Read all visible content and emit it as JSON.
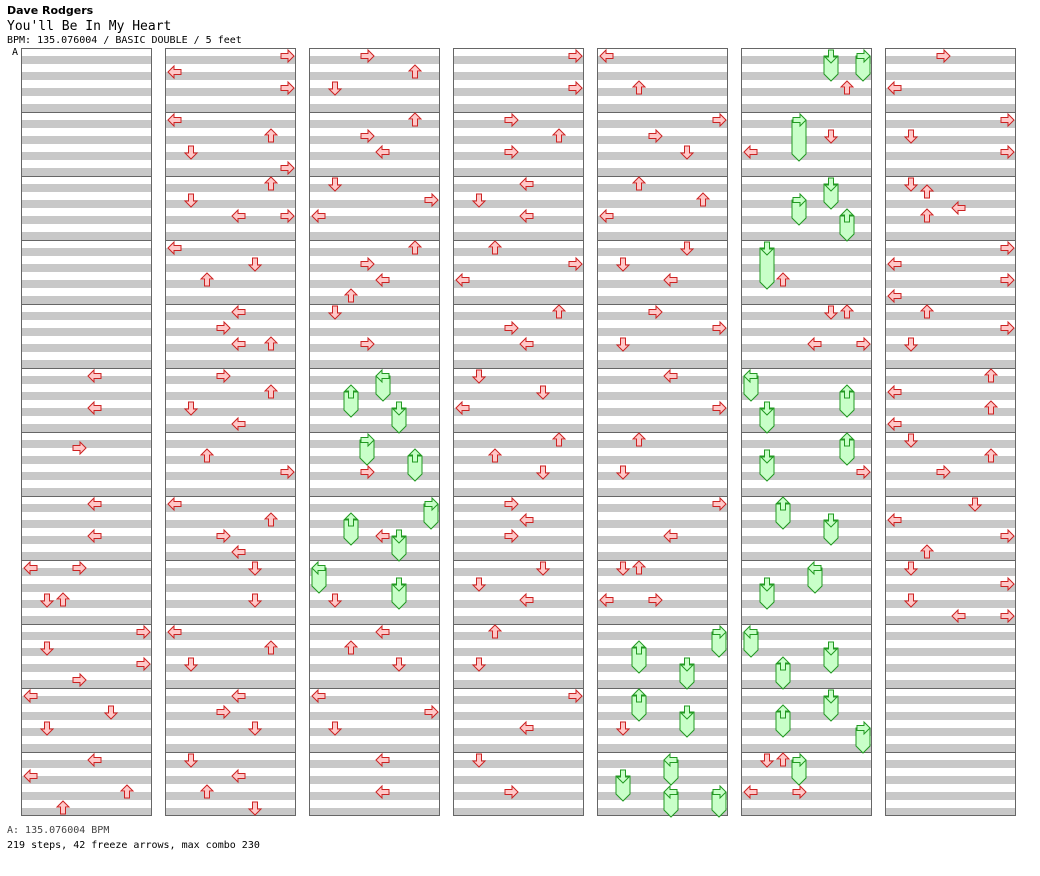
{
  "artist": "Dave Rodgers",
  "title": "You'll Be In My Heart",
  "info": "BPM: 135.076004 / BASIC DOUBLE / 5 feet",
  "marker": "A",
  "footer_bpm": "A: 135.076004 BPM",
  "footer_stats": "219 steps, 42 freeze arrows, max combo 230",
  "colors": {
    "stripe": "#c8c8c8",
    "arrow_fill": "#ffc8c8",
    "arrow_stroke": "#cc2222",
    "freeze_fill": "#c8ffc8",
    "freeze_stroke": "#229922"
  },
  "chart_data": {
    "type": "step-chart",
    "columns": 7,
    "measures_per_column": 12,
    "lanes": 8,
    "rows_per_measure": 8,
    "arrows": [
      [
        0,
        5,
        0,
        "L"
      ],
      [
        0,
        5,
        2,
        "L"
      ],
      [
        0,
        6,
        0.5,
        "R"
      ],
      [
        0,
        7,
        0,
        "L"
      ],
      [
        0,
        7,
        2,
        "L"
      ],
      [
        0,
        8,
        0,
        "L"
      ],
      [
        0,
        8,
        0,
        "R"
      ],
      [
        0,
        8,
        2,
        "D"
      ],
      [
        0,
        8,
        2,
        "U"
      ],
      [
        0,
        9,
        0,
        "R"
      ],
      [
        0,
        9,
        1,
        "D"
      ],
      [
        0,
        9,
        2,
        "R"
      ],
      [
        0,
        9,
        3,
        "R"
      ],
      [
        0,
        10,
        0,
        "L"
      ],
      [
        0,
        10,
        1,
        "D"
      ],
      [
        0,
        10,
        2,
        "D"
      ],
      [
        0,
        11,
        0,
        "L"
      ],
      [
        0,
        11,
        1,
        "L"
      ],
      [
        0,
        11,
        2,
        "U"
      ],
      [
        0,
        11,
        3,
        "U"
      ],
      [
        1,
        0,
        0,
        "R"
      ],
      [
        1,
        0,
        1,
        "L"
      ],
      [
        1,
        0,
        2,
        "R"
      ],
      [
        1,
        1,
        0,
        "L"
      ],
      [
        1,
        1,
        1,
        "U"
      ],
      [
        1,
        1,
        2,
        "D"
      ],
      [
        1,
        1,
        3,
        "R"
      ],
      [
        1,
        2,
        0,
        "U"
      ],
      [
        1,
        2,
        1,
        "D"
      ],
      [
        1,
        2,
        2,
        "L"
      ],
      [
        1,
        2,
        2,
        "R"
      ],
      [
        1,
        3,
        0,
        "L"
      ],
      [
        1,
        3,
        1,
        "D"
      ],
      [
        1,
        3,
        2,
        "U"
      ],
      [
        1,
        4,
        0,
        "L"
      ],
      [
        1,
        4,
        1,
        "R"
      ],
      [
        1,
        4,
        2,
        "L"
      ],
      [
        1,
        4,
        2,
        "U"
      ],
      [
        1,
        5,
        0,
        "R"
      ],
      [
        1,
        5,
        1,
        "U"
      ],
      [
        1,
        5,
        2,
        "D"
      ],
      [
        1,
        5,
        3,
        "L"
      ],
      [
        1,
        6,
        1,
        "U"
      ],
      [
        1,
        6,
        2,
        "R"
      ],
      [
        1,
        7,
        0,
        "L"
      ],
      [
        1,
        7,
        1,
        "U"
      ],
      [
        1,
        7,
        2,
        "R"
      ],
      [
        1,
        7,
        3,
        "L"
      ],
      [
        1,
        8,
        0,
        "D"
      ],
      [
        1,
        8,
        2,
        "D"
      ],
      [
        1,
        9,
        0,
        "L"
      ],
      [
        1,
        9,
        1,
        "U"
      ],
      [
        1,
        9,
        2,
        "D"
      ],
      [
        1,
        10,
        0,
        "L"
      ],
      [
        1,
        10,
        1,
        "R"
      ],
      [
        1,
        10,
        2,
        "D"
      ],
      [
        1,
        11,
        0,
        "D"
      ],
      [
        1,
        11,
        1,
        "L"
      ],
      [
        1,
        11,
        2,
        "U"
      ],
      [
        1,
        11,
        3,
        "D"
      ],
      [
        2,
        0,
        0,
        "R"
      ],
      [
        2,
        0,
        1,
        "U"
      ],
      [
        2,
        0,
        2,
        "D"
      ],
      [
        2,
        1,
        0,
        "U"
      ],
      [
        2,
        1,
        1,
        "R"
      ],
      [
        2,
        1,
        2,
        "L"
      ],
      [
        2,
        2,
        0,
        "D"
      ],
      [
        2,
        2,
        1,
        "R"
      ],
      [
        2,
        2,
        2,
        "L"
      ],
      [
        2,
        3,
        0,
        "U"
      ],
      [
        2,
        3,
        1,
        "R"
      ],
      [
        2,
        3,
        2,
        "L"
      ],
      [
        2,
        3,
        3,
        "U"
      ],
      [
        2,
        4,
        0,
        "D"
      ],
      [
        2,
        4,
        2,
        "R"
      ],
      [
        2,
        6,
        2,
        "R"
      ],
      [
        2,
        7,
        2,
        "L"
      ],
      [
        2,
        8,
        2,
        "D"
      ],
      [
        2,
        9,
        0,
        "L"
      ],
      [
        2,
        9,
        1,
        "U"
      ],
      [
        2,
        9,
        2,
        "D"
      ],
      [
        2,
        10,
        0,
        "L"
      ],
      [
        2,
        10,
        1,
        "R"
      ],
      [
        2,
        10,
        2,
        "D"
      ],
      [
        2,
        11,
        0,
        "L"
      ],
      [
        2,
        11,
        2,
        "L"
      ],
      [
        3,
        0,
        0,
        "R"
      ],
      [
        3,
        0,
        2,
        "R"
      ],
      [
        3,
        1,
        0,
        "R"
      ],
      [
        3,
        1,
        1,
        "U"
      ],
      [
        3,
        1,
        2,
        "R"
      ],
      [
        3,
        2,
        0,
        "L"
      ],
      [
        3,
        2,
        1,
        "D"
      ],
      [
        3,
        2,
        2,
        "L"
      ],
      [
        3,
        3,
        0,
        "U"
      ],
      [
        3,
        3,
        1,
        "R"
      ],
      [
        3,
        3,
        2,
        "L"
      ],
      [
        3,
        4,
        0,
        "U"
      ],
      [
        3,
        4,
        1,
        "R"
      ],
      [
        3,
        4,
        2,
        "L"
      ],
      [
        3,
        5,
        0,
        "D"
      ],
      [
        3,
        5,
        1,
        "D"
      ],
      [
        3,
        5,
        2,
        "L"
      ],
      [
        3,
        6,
        0,
        "U"
      ],
      [
        3,
        6,
        1,
        "U"
      ],
      [
        3,
        6,
        2,
        "D"
      ],
      [
        3,
        7,
        0,
        "R"
      ],
      [
        3,
        7,
        1,
        "L"
      ],
      [
        3,
        7,
        2,
        "R"
      ],
      [
        3,
        8,
        0,
        "D"
      ],
      [
        3,
        8,
        1,
        "D"
      ],
      [
        3,
        8,
        2,
        "L"
      ],
      [
        3,
        9,
        0,
        "U"
      ],
      [
        3,
        9,
        2,
        "D"
      ],
      [
        3,
        10,
        0,
        "R"
      ],
      [
        3,
        10,
        2,
        "L"
      ],
      [
        3,
        11,
        0,
        "D"
      ],
      [
        3,
        11,
        2,
        "R"
      ],
      [
        4,
        0,
        0,
        "L"
      ],
      [
        4,
        0,
        2,
        "U"
      ],
      [
        4,
        1,
        0,
        "R"
      ],
      [
        4,
        1,
        1,
        "R"
      ],
      [
        4,
        1,
        2,
        "D"
      ],
      [
        4,
        2,
        0,
        "U"
      ],
      [
        4,
        2,
        1,
        "U"
      ],
      [
        4,
        2,
        2,
        "L"
      ],
      [
        4,
        3,
        0,
        "D"
      ],
      [
        4,
        3,
        1,
        "D"
      ],
      [
        4,
        3,
        2,
        "L"
      ],
      [
        4,
        4,
        0,
        "R"
      ],
      [
        4,
        4,
        1,
        "R"
      ],
      [
        4,
        4,
        2,
        "D"
      ],
      [
        4,
        5,
        0,
        "L"
      ],
      [
        4,
        5,
        2,
        "R"
      ],
      [
        4,
        6,
        0,
        "U"
      ],
      [
        4,
        6,
        2,
        "D"
      ],
      [
        4,
        7,
        0,
        "R"
      ],
      [
        4,
        7,
        2,
        "L"
      ],
      [
        4,
        8,
        0,
        "D"
      ],
      [
        4,
        8,
        0,
        "U"
      ],
      [
        4,
        8,
        2,
        "L"
      ],
      [
        4,
        8,
        2,
        "R"
      ],
      [
        4,
        10,
        2,
        "D"
      ],
      [
        5,
        0,
        2,
        "U"
      ],
      [
        5,
        1,
        1,
        "D"
      ],
      [
        5,
        1,
        2,
        "L"
      ],
      [
        5,
        3,
        2,
        "U"
      ],
      [
        5,
        4,
        0,
        "D"
      ],
      [
        5,
        4,
        0,
        "U"
      ],
      [
        5,
        4,
        2,
        "L"
      ],
      [
        5,
        4,
        2,
        "R"
      ],
      [
        5,
        6,
        2,
        "R"
      ],
      [
        5,
        11,
        0,
        "D"
      ],
      [
        5,
        11,
        0,
        "U"
      ],
      [
        5,
        11,
        2,
        "L"
      ],
      [
        5,
        11,
        2,
        "R"
      ],
      [
        6,
        0,
        0,
        "R"
      ],
      [
        6,
        0,
        2,
        "L"
      ],
      [
        6,
        1,
        0,
        "R"
      ],
      [
        6,
        1,
        1,
        "D"
      ],
      [
        6,
        1,
        2,
        "R"
      ],
      [
        6,
        2,
        0,
        "D"
      ],
      [
        6,
        2,
        0.5,
        "U"
      ],
      [
        6,
        2,
        1.5,
        "L"
      ],
      [
        6,
        2,
        2,
        "U"
      ],
      [
        6,
        3,
        0,
        "R"
      ],
      [
        6,
        3,
        1,
        "L"
      ],
      [
        6,
        3,
        2,
        "R"
      ],
      [
        6,
        3,
        3,
        "L"
      ],
      [
        6,
        4,
        0,
        "U"
      ],
      [
        6,
        4,
        1,
        "R"
      ],
      [
        6,
        4,
        2,
        "D"
      ],
      [
        6,
        5,
        0,
        "U"
      ],
      [
        6,
        5,
        1,
        "L"
      ],
      [
        6,
        5,
        2,
        "U"
      ],
      [
        6,
        5,
        3,
        "L"
      ],
      [
        6,
        6,
        0,
        "D"
      ],
      [
        6,
        6,
        1,
        "U"
      ],
      [
        6,
        6,
        2,
        "R"
      ],
      [
        6,
        7,
        0,
        "D"
      ],
      [
        6,
        7,
        1,
        "L"
      ],
      [
        6,
        7,
        2,
        "R"
      ],
      [
        6,
        7,
        3,
        "U"
      ],
      [
        6,
        8,
        0,
        "D"
      ],
      [
        6,
        8,
        1,
        "R"
      ],
      [
        6,
        8,
        2,
        "D"
      ],
      [
        6,
        8,
        3,
        "R"
      ],
      [
        6,
        8,
        3,
        "L"
      ]
    ],
    "freezes": [
      [
        2,
        5,
        0,
        "L",
        1
      ],
      [
        2,
        5,
        1,
        "U",
        1
      ],
      [
        2,
        5,
        2,
        "D",
        1
      ],
      [
        2,
        6,
        0,
        "R",
        1
      ],
      [
        2,
        6,
        1,
        "U",
        1
      ],
      [
        2,
        7,
        0,
        "R",
        1
      ],
      [
        2,
        7,
        1,
        "U",
        1
      ],
      [
        2,
        7,
        2,
        "D",
        1
      ],
      [
        2,
        8,
        0,
        "L",
        1
      ],
      [
        2,
        8,
        1,
        "D",
        1
      ],
      [
        4,
        9,
        0,
        "R",
        1
      ],
      [
        4,
        9,
        1,
        "U",
        1
      ],
      [
        4,
        9,
        2,
        "D",
        1
      ],
      [
        4,
        10,
        0,
        "U",
        1
      ],
      [
        4,
        10,
        1,
        "D",
        1
      ],
      [
        4,
        11,
        0,
        "L",
        1
      ],
      [
        4,
        11,
        1,
        "D",
        1
      ],
      [
        4,
        11,
        2,
        "R",
        1
      ],
      [
        5,
        0,
        0,
        "D",
        1
      ],
      [
        5,
        0,
        0,
        "R",
        1
      ],
      [
        5,
        1,
        0,
        "R",
        2
      ],
      [
        5,
        2,
        0,
        "D",
        1
      ],
      [
        5,
        2,
        1,
        "R",
        1
      ],
      [
        5,
        3,
        0,
        "D",
        2
      ],
      [
        5,
        5,
        0,
        "L",
        1
      ],
      [
        5,
        5,
        1,
        "U",
        1
      ],
      [
        5,
        5,
        2,
        "D",
        1
      ],
      [
        5,
        6,
        0,
        "U",
        1
      ],
      [
        5,
        6,
        1,
        "D",
        1
      ],
      [
        5,
        7,
        0,
        "U",
        1
      ],
      [
        5,
        7,
        1,
        "D",
        1
      ],
      [
        5,
        8,
        0,
        "L",
        1
      ],
      [
        5,
        8,
        1,
        "D",
        1
      ],
      [
        5,
        9,
        0,
        "L",
        1
      ],
      [
        5,
        9,
        1,
        "D",
        1
      ],
      [
        5,
        9,
        2,
        "U",
        1
      ],
      [
        5,
        10,
        0,
        "D",
        1
      ],
      [
        5,
        10,
        1,
        "U",
        1
      ],
      [
        5,
        10,
        2,
        "R",
        1
      ],
      [
        5,
        11,
        0,
        "R",
        1
      ],
      [
        4,
        11,
        2,
        "L",
        1
      ],
      [
        5,
        2,
        2,
        "U",
        1
      ]
    ]
  }
}
